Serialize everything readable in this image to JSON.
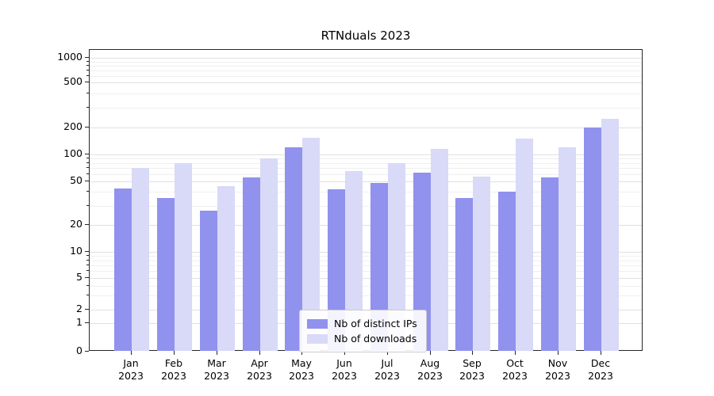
{
  "chart_data": {
    "type": "bar",
    "title": "RTNduals 2023",
    "categories": [
      "Jan",
      "Feb",
      "Mar",
      "Apr",
      "May",
      "Jun",
      "Jul",
      "Aug",
      "Sep",
      "Oct",
      "Nov",
      "Dec"
    ],
    "category_year": "2023",
    "series": [
      {
        "name": "Nb of distinct IPs",
        "color": "#9191ee",
        "values": [
          43,
          35,
          27,
          55,
          120,
          42,
          48,
          62,
          35,
          40,
          55,
          200
        ]
      },
      {
        "name": "Nb of downloads",
        "color": "#d9d9f8",
        "values": [
          70,
          80,
          45,
          90,
          155,
          65,
          80,
          115,
          57,
          150,
          120,
          240
        ]
      }
    ],
    "yscale": "symlog",
    "yticks": [
      0,
      1,
      2,
      5,
      10,
      20,
      50,
      100,
      200,
      500,
      1000
    ],
    "yticks_minor": [
      3,
      4,
      6,
      7,
      8,
      9,
      30,
      40,
      60,
      70,
      80,
      90,
      300,
      400,
      600,
      700,
      800,
      900
    ],
    "ylim": [
      0,
      1000
    ],
    "grid": true,
    "legend_position": "lower center"
  }
}
